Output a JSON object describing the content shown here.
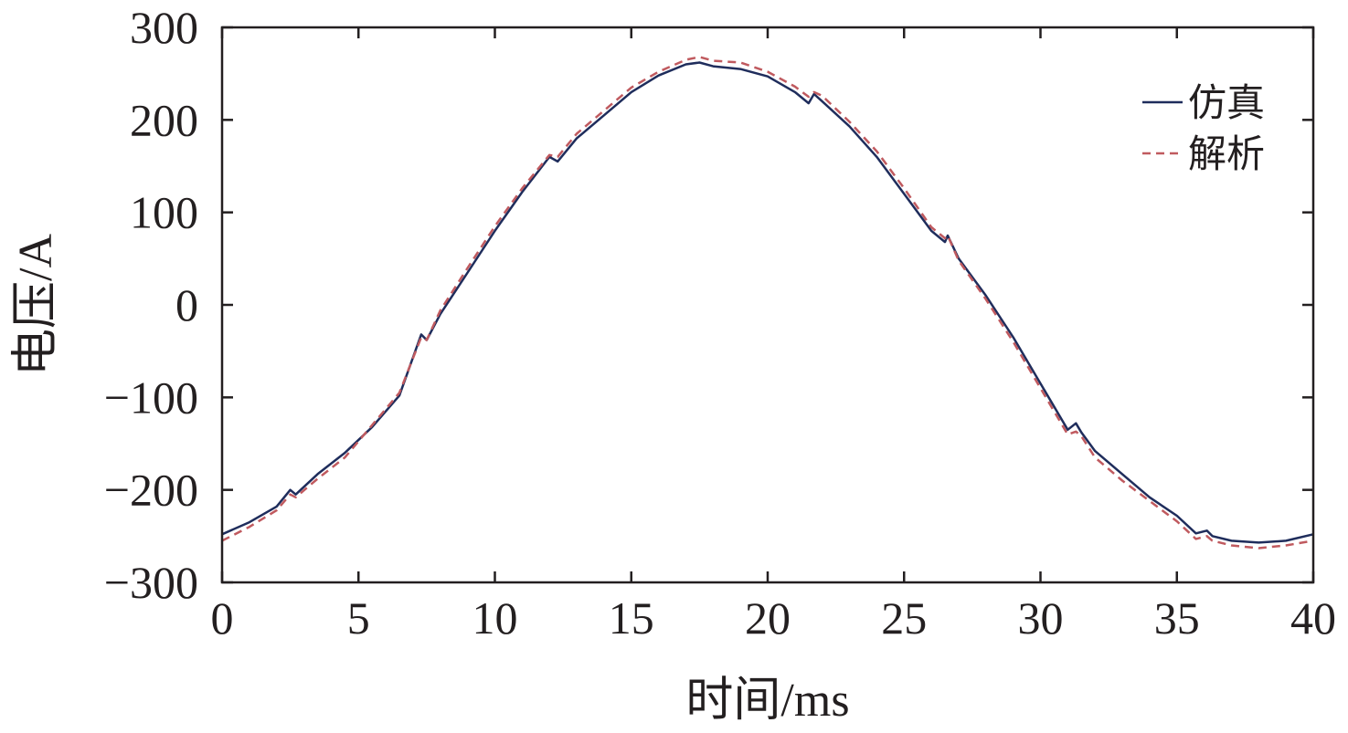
{
  "chart_data": {
    "type": "line",
    "xlabel": "时间/ms",
    "ylabel": "电压/A",
    "xlim": [
      0,
      40
    ],
    "ylim": [
      -300,
      300
    ],
    "xticks": [
      0,
      5,
      10,
      15,
      20,
      25,
      30,
      35,
      40
    ],
    "yticks": [
      -300,
      -200,
      -100,
      0,
      100,
      200,
      300
    ],
    "xtick_labels": [
      "0",
      "5",
      "10",
      "15",
      "20",
      "25",
      "30",
      "35",
      "40"
    ],
    "ytick_labels": [
      "−300",
      "−200",
      "−100",
      "0",
      "100",
      "200",
      "300"
    ],
    "grid": false,
    "legend_position": "top-right",
    "series": [
      {
        "name": "仿真",
        "color": "#1f2d5c",
        "style": "solid",
        "x": [
          0,
          1,
          2,
          2.5,
          2.7,
          3.5,
          4.5,
          5.5,
          6.5,
          7.3,
          7.5,
          8,
          9,
          10,
          11,
          12,
          12.3,
          13,
          14,
          15,
          16,
          17,
          17.5,
          18,
          19,
          20,
          21,
          21.5,
          21.7,
          22,
          23,
          24,
          25,
          26,
          26.5,
          26.6,
          27,
          28,
          29,
          30,
          31,
          31.3,
          31.5,
          32,
          33,
          34,
          35,
          35.7,
          36.1,
          36.3,
          37,
          38,
          39,
          40
        ],
        "y": [
          -248,
          -235,
          -218,
          -200,
          -205,
          -183,
          -160,
          -132,
          -98,
          -32,
          -38,
          -10,
          35,
          80,
          122,
          160,
          155,
          180,
          205,
          230,
          248,
          260,
          262,
          258,
          255,
          247,
          230,
          218,
          228,
          220,
          193,
          160,
          120,
          80,
          68,
          75,
          50,
          10,
          -35,
          -85,
          -135,
          -128,
          -138,
          -158,
          -183,
          -208,
          -228,
          -247,
          -244,
          -250,
          -255,
          -257,
          -255,
          -248
        ]
      },
      {
        "name": "解析",
        "color": "#c05a5f",
        "style": "dashed",
        "x": [
          0,
          1,
          2,
          2.5,
          2.7,
          3.5,
          4.5,
          5.5,
          6.5,
          7.3,
          7.5,
          8,
          9,
          10,
          11,
          12,
          12.3,
          13,
          14,
          15,
          16,
          17,
          17.5,
          18,
          19,
          20,
          21,
          21.5,
          21.7,
          22,
          23,
          24,
          25,
          26,
          26.5,
          26.6,
          27,
          28,
          29,
          30,
          31,
          31.3,
          31.5,
          32,
          33,
          34,
          35,
          35.7,
          36.1,
          36.3,
          37,
          38,
          39,
          40
        ],
        "y": [
          -255,
          -240,
          -222,
          -205,
          -208,
          -188,
          -165,
          -130,
          -95,
          -35,
          -38,
          -6,
          40,
          85,
          126,
          162,
          160,
          185,
          210,
          235,
          252,
          265,
          268,
          264,
          262,
          252,
          236,
          225,
          230,
          226,
          198,
          166,
          126,
          84,
          72,
          75,
          48,
          6,
          -40,
          -90,
          -140,
          -137,
          -142,
          -165,
          -190,
          -212,
          -234,
          -253,
          -250,
          -255,
          -260,
          -263,
          -260,
          -255
        ]
      }
    ]
  }
}
